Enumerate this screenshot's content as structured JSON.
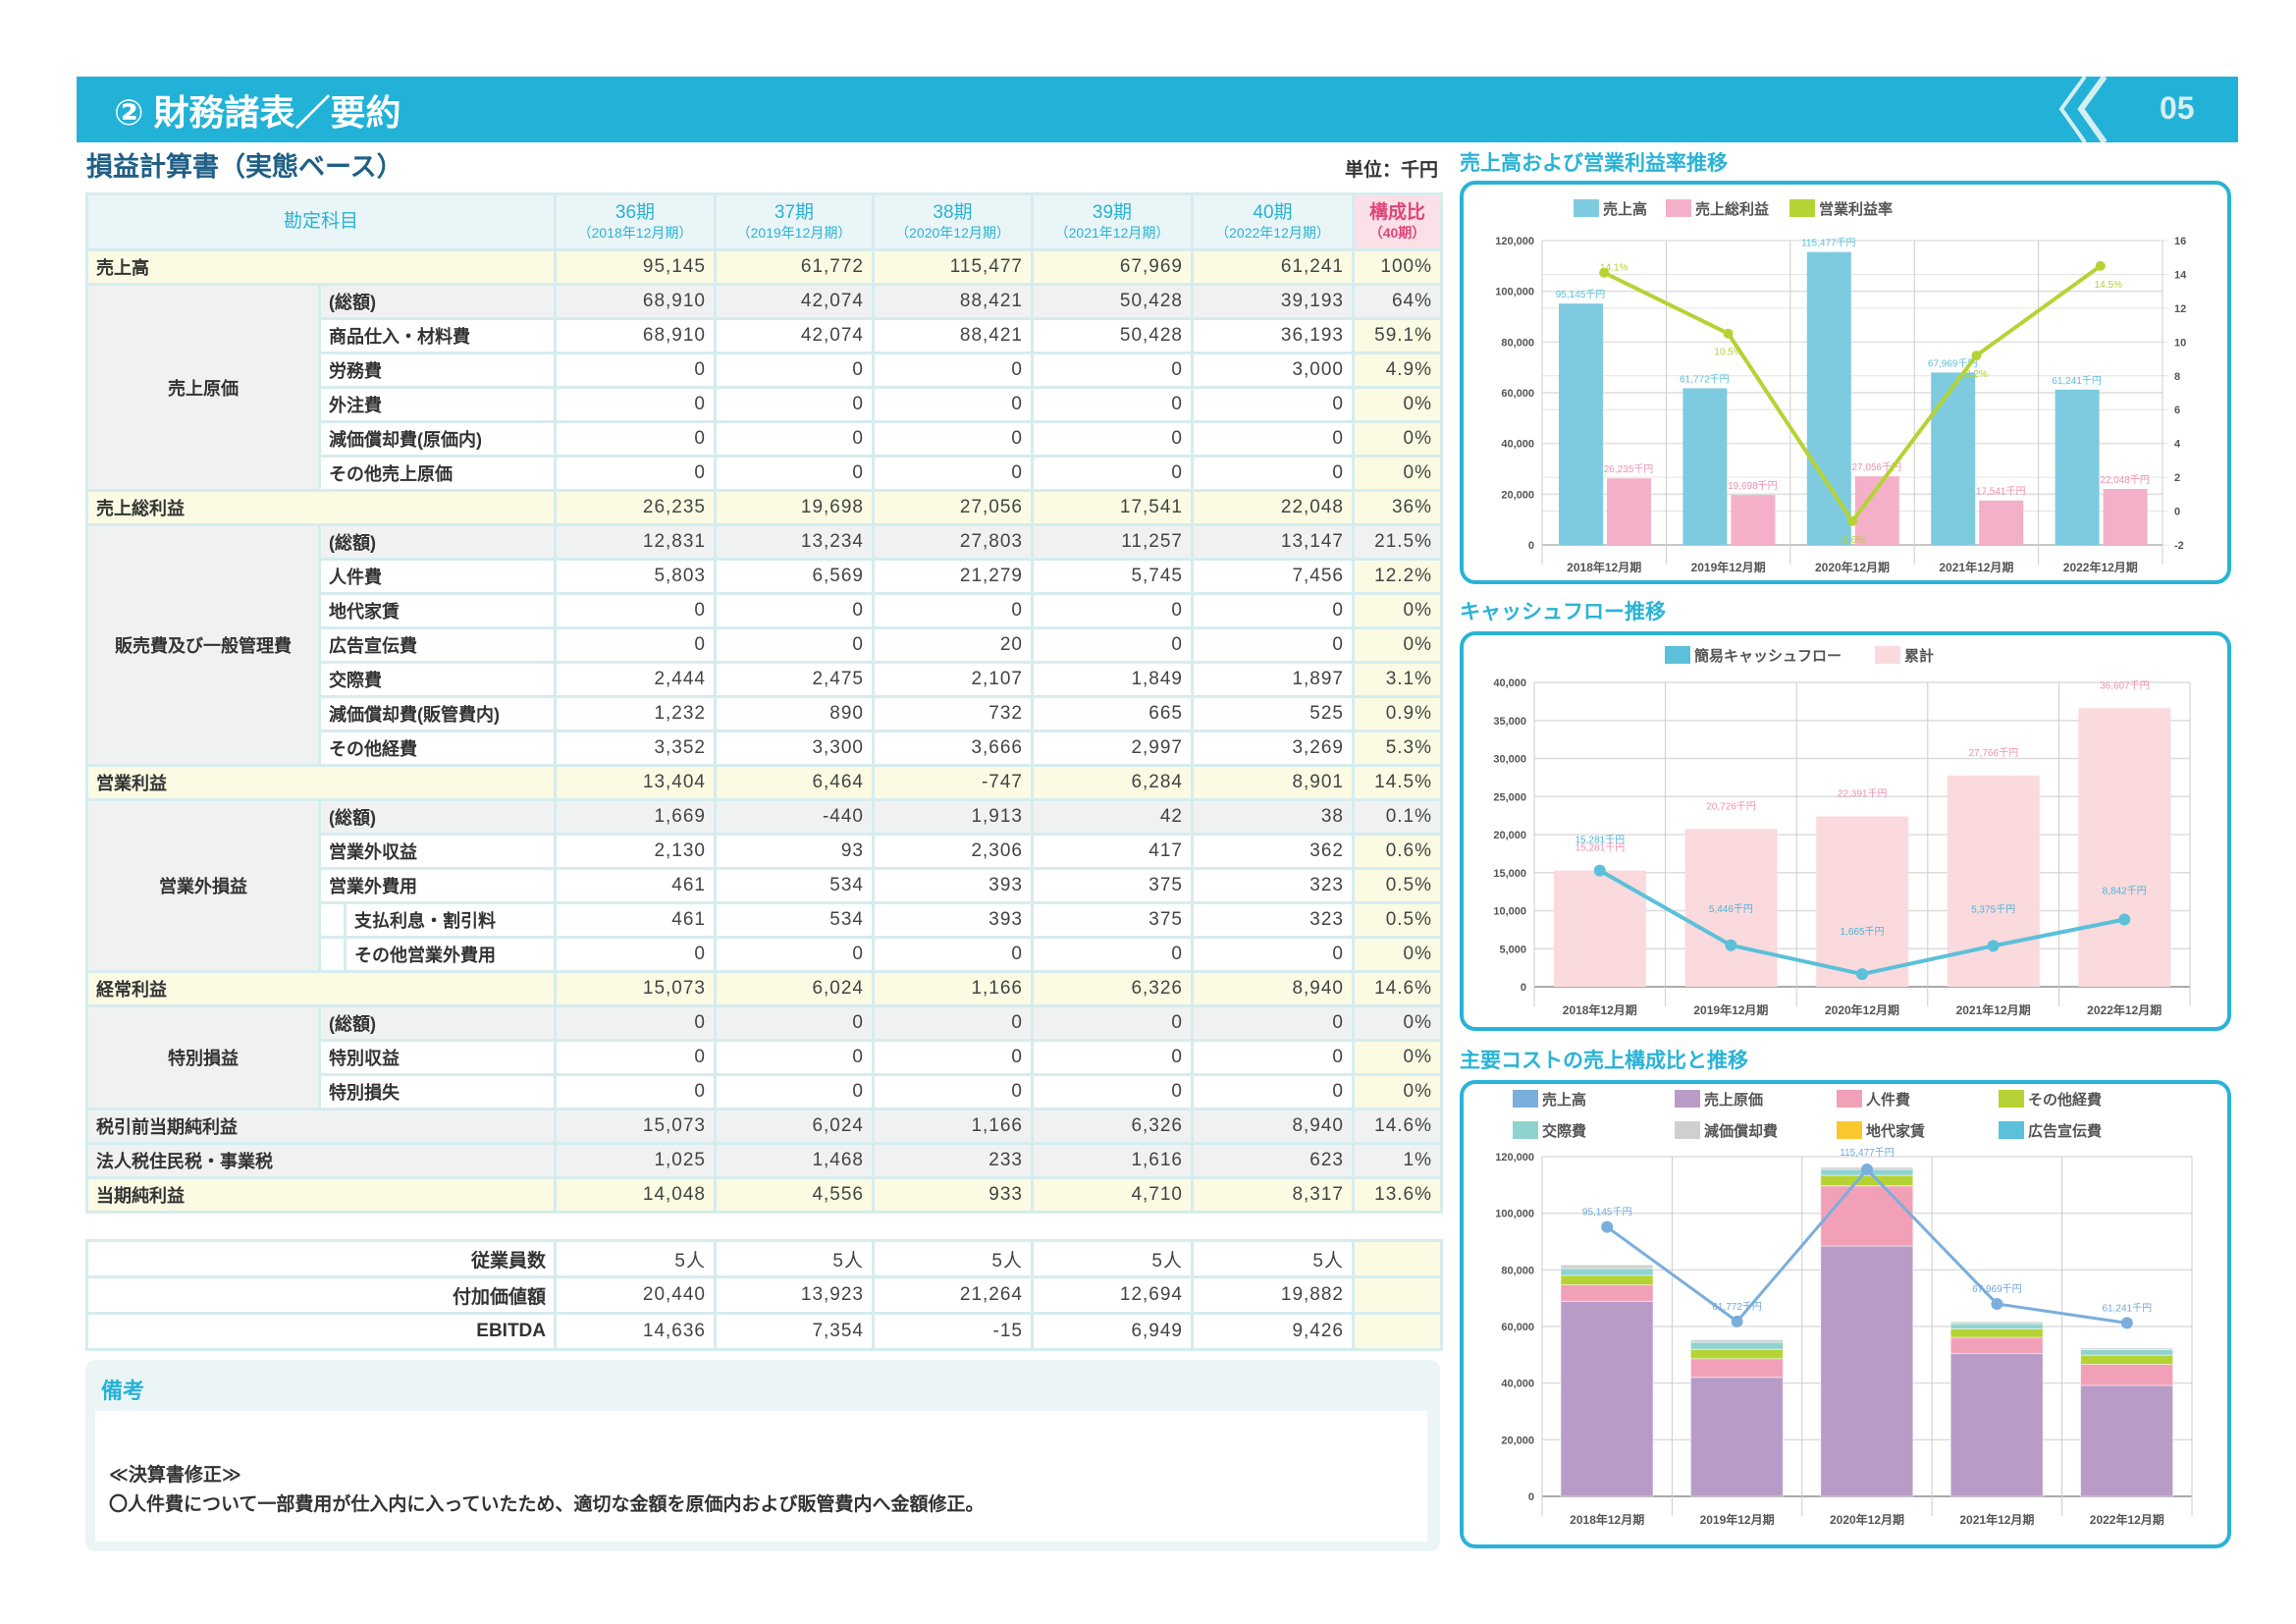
{
  "header": {
    "title": "② 財務諸表／要約",
    "page": "05"
  },
  "pl": {
    "title": "損益計算書（実態ベース）",
    "unit": "単位：千円",
    "account_header": "勘定科目",
    "periods": [
      {
        "label": "36期",
        "sub": "（2018年12月期）"
      },
      {
        "label": "37期",
        "sub": "（2019年12月期）"
      },
      {
        "label": "38期",
        "sub": "（2020年12月期）"
      },
      {
        "label": "39期",
        "sub": "（2021年12月期）"
      },
      {
        "label": "40期",
        "sub": "（2022年12月期）"
      }
    ],
    "ratio_header": "構成比",
    "ratio_sub": "（40期）",
    "sections": [
      {
        "type": "main",
        "label": "売上高",
        "values": [
          "95,145",
          "61,772",
          "115,477",
          "67,969",
          "61,241"
        ],
        "ratio": "100%"
      },
      {
        "type": "group",
        "label": "売上原価",
        "rows": [
          {
            "label": "(総額)",
            "total": true,
            "values": [
              "68,910",
              "42,074",
              "88,421",
              "50,428",
              "39,193"
            ],
            "ratio": "64%"
          },
          {
            "label": "商品仕入・材料費",
            "values": [
              "68,910",
              "42,074",
              "88,421",
              "50,428",
              "36,193"
            ],
            "ratio": "59.1%"
          },
          {
            "label": "労務費",
            "values": [
              "0",
              "0",
              "0",
              "0",
              "3,000"
            ],
            "ratio": "4.9%"
          },
          {
            "label": "外注費",
            "values": [
              "0",
              "0",
              "0",
              "0",
              "0"
            ],
            "ratio": "0%"
          },
          {
            "label": "減価償却費(原価内)",
            "values": [
              "0",
              "0",
              "0",
              "0",
              "0"
            ],
            "ratio": "0%"
          },
          {
            "label": "その他売上原価",
            "values": [
              "0",
              "0",
              "0",
              "0",
              "0"
            ],
            "ratio": "0%"
          }
        ]
      },
      {
        "type": "main",
        "label": "売上総利益",
        "values": [
          "26,235",
          "19,698",
          "27,056",
          "17,541",
          "22,048"
        ],
        "ratio": "36%"
      },
      {
        "type": "group",
        "label": "販売費及び一般管理費",
        "rows": [
          {
            "label": "(総額)",
            "total": true,
            "values": [
              "12,831",
              "13,234",
              "27,803",
              "11,257",
              "13,147"
            ],
            "ratio": "21.5%"
          },
          {
            "label": "人件費",
            "values": [
              "5,803",
              "6,569",
              "21,279",
              "5,745",
              "7,456"
            ],
            "ratio": "12.2%"
          },
          {
            "label": "地代家賃",
            "values": [
              "0",
              "0",
              "0",
              "0",
              "0"
            ],
            "ratio": "0%"
          },
          {
            "label": "広告宣伝費",
            "values": [
              "0",
              "0",
              "20",
              "0",
              "0"
            ],
            "ratio": "0%"
          },
          {
            "label": "交際費",
            "values": [
              "2,444",
              "2,475",
              "2,107",
              "1,849",
              "1,897"
            ],
            "ratio": "3.1%"
          },
          {
            "label": "減価償却費(販管費内)",
            "values": [
              "1,232",
              "890",
              "732",
              "665",
              "525"
            ],
            "ratio": "0.9%"
          },
          {
            "label": "その他経費",
            "values": [
              "3,352",
              "3,300",
              "3,666",
              "2,997",
              "3,269"
            ],
            "ratio": "5.3%"
          }
        ]
      },
      {
        "type": "main",
        "label": "営業利益",
        "values": [
          "13,404",
          "6,464",
          "-747",
          "6,284",
          "8,901"
        ],
        "ratio": "14.5%"
      },
      {
        "type": "group",
        "label": "営業外損益",
        "rows": [
          {
            "label": "(総額)",
            "total": true,
            "values": [
              "1,669",
              "-440",
              "1,913",
              "42",
              "38"
            ],
            "ratio": "0.1%"
          },
          {
            "label": "営業外収益",
            "values": [
              "2,130",
              "93",
              "2,306",
              "417",
              "362"
            ],
            "ratio": "0.6%"
          },
          {
            "label": "営業外費用",
            "values": [
              "461",
              "534",
              "393",
              "375",
              "323"
            ],
            "ratio": "0.5%"
          },
          {
            "label": "支払利息・割引料",
            "indent": true,
            "values": [
              "461",
              "534",
              "393",
              "375",
              "323"
            ],
            "ratio": "0.5%"
          },
          {
            "label": "その他営業外費用",
            "indent": true,
            "values": [
              "0",
              "0",
              "0",
              "0",
              "0"
            ],
            "ratio": "0%"
          }
        ]
      },
      {
        "type": "main",
        "label": "経常利益",
        "values": [
          "15,073",
          "6,024",
          "1,166",
          "6,326",
          "8,940"
        ],
        "ratio": "14.6%"
      },
      {
        "type": "group",
        "label": "特別損益",
        "rows": [
          {
            "label": "(総額)",
            "total": true,
            "values": [
              "0",
              "0",
              "0",
              "0",
              "0"
            ],
            "ratio": "0%"
          },
          {
            "label": "特別収益",
            "values": [
              "0",
              "0",
              "0",
              "0",
              "0"
            ],
            "ratio": "0%"
          },
          {
            "label": "特別損失",
            "values": [
              "0",
              "0",
              "0",
              "0",
              "0"
            ],
            "ratio": "0%"
          }
        ]
      },
      {
        "type": "plain",
        "label": "税引前当期純利益",
        "values": [
          "15,073",
          "6,024",
          "1,166",
          "6,326",
          "8,940"
        ],
        "ratio": "14.6%"
      },
      {
        "type": "plain",
        "label": "法人税住民税・事業税",
        "values": [
          "1,025",
          "1,468",
          "233",
          "1,616",
          "623"
        ],
        "ratio": "1%"
      },
      {
        "type": "main",
        "label": "当期純利益",
        "values": [
          "14,048",
          "4,556",
          "933",
          "4,710",
          "8,317"
        ],
        "ratio": "13.6%"
      }
    ]
  },
  "extra": [
    {
      "label": "従業員数",
      "values": [
        "5人",
        "5人",
        "5人",
        "5人",
        "5人"
      ]
    },
    {
      "label": "付加価値額",
      "values": [
        "20,440",
        "13,923",
        "21,264",
        "12,694",
        "19,882"
      ]
    },
    {
      "label": "EBITDA",
      "values": [
        "14,636",
        "7,354",
        "-15",
        "6,949",
        "9,426"
      ]
    }
  ],
  "notes": {
    "title": "備考",
    "heading": "≪決算書修正≫",
    "text": "〇人件費について一部費用が仕入内に入っていたため、適切な金額を原価内および販管費内へ金額修正。"
  },
  "chart_data": [
    {
      "type": "bar",
      "title": "売上高および営業利益率推移",
      "categories": [
        "2018年12月期",
        "2019年12月期",
        "2020年12月期",
        "2021年12月期",
        "2022年12月期"
      ],
      "series": [
        {
          "name": "売上高",
          "kind": "bar",
          "color": "#7ecbe0",
          "values": [
            95145,
            61772,
            115477,
            67969,
            61241
          ],
          "labels": [
            "95,145千円",
            "61,772千円",
            "115,477千円",
            "67,969千円",
            "61,241千円"
          ]
        },
        {
          "name": "売上総利益",
          "kind": "bar",
          "color": "#f4b0c8",
          "values": [
            26235,
            19698,
            27056,
            17541,
            22048
          ],
          "labels": [
            "26,235千円",
            "19,698千円",
            "27,056千円",
            "17,541千円",
            "22,048千円"
          ]
        },
        {
          "name": "営業利益率",
          "kind": "line",
          "axis": "right",
          "color": "#b5d334",
          "values": [
            14.1,
            10.5,
            -0.6,
            9.2,
            14.5
          ],
          "labels": [
            "14.1%",
            "10.5%",
            "-0.6%",
            "9.2%",
            "14.5%"
          ]
        }
      ],
      "ylim": [
        0,
        120000
      ],
      "yticks": [
        "0",
        "20,000",
        "40,000",
        "60,000",
        "80,000",
        "100,000",
        "120,000"
      ],
      "y2lim": [
        -2,
        16
      ],
      "y2ticks": [
        "-2",
        "0",
        "2",
        "4",
        "6",
        "8",
        "10",
        "12",
        "14",
        "16"
      ],
      "grid": true,
      "legend": "top"
    },
    {
      "type": "bar",
      "title": "キャッシュフロー推移",
      "categories": [
        "2018年12月期",
        "2019年12月期",
        "2020年12月期",
        "2021年12月期",
        "2022年12月期"
      ],
      "series": [
        {
          "name": "簡易キャッシュフロー",
          "kind": "line",
          "color": "#5bc0da",
          "values": [
            15281,
            5446,
            1665,
            5375,
            8842
          ],
          "labels": [
            "15,281千円",
            "5,446千円",
            "1,665千円",
            "5,375千円",
            "8,842千円"
          ]
        },
        {
          "name": "累計",
          "kind": "bar",
          "color": "#fadadd",
          "values": [
            15281,
            20726,
            22391,
            27766,
            36607
          ],
          "labels": [
            "15,281千円",
            "20,726千円",
            "22,391千円",
            "27,766千円",
            "36,607千円"
          ]
        }
      ],
      "ylim": [
        0,
        40000
      ],
      "yticks": [
        "0",
        "5,000",
        "10,000",
        "15,000",
        "20,000",
        "25,000",
        "30,000",
        "35,000",
        "40,000"
      ],
      "grid": true,
      "legend": "top"
    },
    {
      "type": "bar",
      "stacked": true,
      "title": "主要コストの売上構成比と推移",
      "categories": [
        "2018年12月期",
        "2019年12月期",
        "2020年12月期",
        "2021年12月期",
        "2022年12月期"
      ],
      "legend_entries": [
        {
          "name": "売上高",
          "color": "#7aaedc"
        },
        {
          "name": "売上原価",
          "color": "#b99bc8"
        },
        {
          "name": "人件費",
          "color": "#f2a0b8"
        },
        {
          "name": "その他経費",
          "color": "#b5d334"
        },
        {
          "name": "交際費",
          "color": "#8fd3cf"
        },
        {
          "name": "減価償却費",
          "color": "#cfcfcf"
        },
        {
          "name": "地代家賃",
          "color": "#fbc72e"
        },
        {
          "name": "広告宣伝費",
          "color": "#5bc0da"
        }
      ],
      "series": [
        {
          "name": "売上原価",
          "color": "#b99bc8",
          "values": [
            68910,
            42074,
            88421,
            50428,
            39193
          ]
        },
        {
          "name": "人件費",
          "color": "#f2a0b8",
          "values": [
            5803,
            6569,
            21279,
            5745,
            7456
          ]
        },
        {
          "name": "地代家賃",
          "color": "#fbc72e",
          "values": [
            0,
            0,
            0,
            0,
            0
          ]
        },
        {
          "name": "広告宣伝費",
          "color": "#5bc0da",
          "values": [
            0,
            0,
            20,
            0,
            0
          ]
        },
        {
          "name": "その他経費",
          "color": "#b5d334",
          "values": [
            3352,
            3300,
            3666,
            2997,
            3269
          ]
        },
        {
          "name": "交際費",
          "color": "#8fd3cf",
          "values": [
            2444,
            2475,
            2107,
            1849,
            1897
          ]
        },
        {
          "name": "減価償却費",
          "color": "#cfcfcf",
          "values": [
            1232,
            890,
            732,
            665,
            525
          ]
        }
      ],
      "line": {
        "name": "売上高",
        "color": "#7aaedc",
        "values": [
          95145,
          61772,
          115477,
          67969,
          61241
        ],
        "labels": [
          "95,145千円",
          "61,772千円",
          "115,477千円",
          "67,969千円",
          "61,241千円"
        ]
      },
      "ylim": [
        0,
        120000
      ],
      "yticks": [
        "0",
        "20,000",
        "40,000",
        "60,000",
        "80,000",
        "100,000",
        "120,000"
      ],
      "grid": true,
      "legend": "top"
    }
  ]
}
